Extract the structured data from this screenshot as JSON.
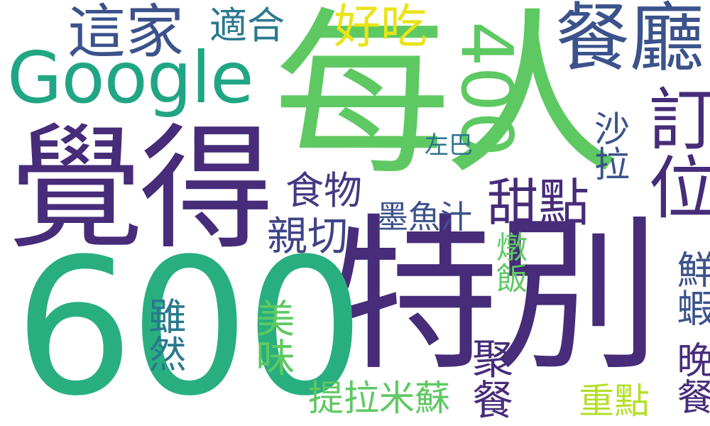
{
  "cloud": {
    "words": [
      {
        "text": "每人",
        "color": "#5ec962"
      },
      {
        "text": "特別",
        "color": "#472c7a"
      },
      {
        "text": "600",
        "color": "#29af7f"
      },
      {
        "text": "覺得",
        "color": "#472c7a"
      },
      {
        "text": "Google",
        "color": "#21a685"
      },
      {
        "text": "餐廳",
        "color": "#3b528b"
      },
      {
        "text": "這家",
        "color": "#3b528b"
      },
      {
        "text": "400",
        "color": "#5ec962"
      },
      {
        "text": "訂位",
        "color": "#472c7a"
      },
      {
        "text": "好吃",
        "color": "#e8e419"
      },
      {
        "text": "適合",
        "color": "#2a788e"
      },
      {
        "text": "甜點",
        "color": "#472c7a"
      },
      {
        "text": "食物",
        "color": "#443983"
      },
      {
        "text": "親切",
        "color": "#414487"
      },
      {
        "text": "墨魚汁",
        "color": "#3b528b"
      },
      {
        "text": "沙拉",
        "color": "#3b528b"
      },
      {
        "text": "左巴",
        "color": "#2c728e"
      },
      {
        "text": "燉飯",
        "color": "#5ec962"
      },
      {
        "text": "聚餐",
        "color": "#472c7a"
      },
      {
        "text": "雖然",
        "color": "#2a788e"
      },
      {
        "text": "美味",
        "color": "#5ec962"
      },
      {
        "text": "鮮蝦",
        "color": "#3b528b"
      },
      {
        "text": "晚餐",
        "color": "#472c7a"
      },
      {
        "text": "提拉米蘇",
        "color": "#5ec962"
      },
      {
        "text": "重點",
        "color": "#b5de2b"
      }
    ]
  }
}
